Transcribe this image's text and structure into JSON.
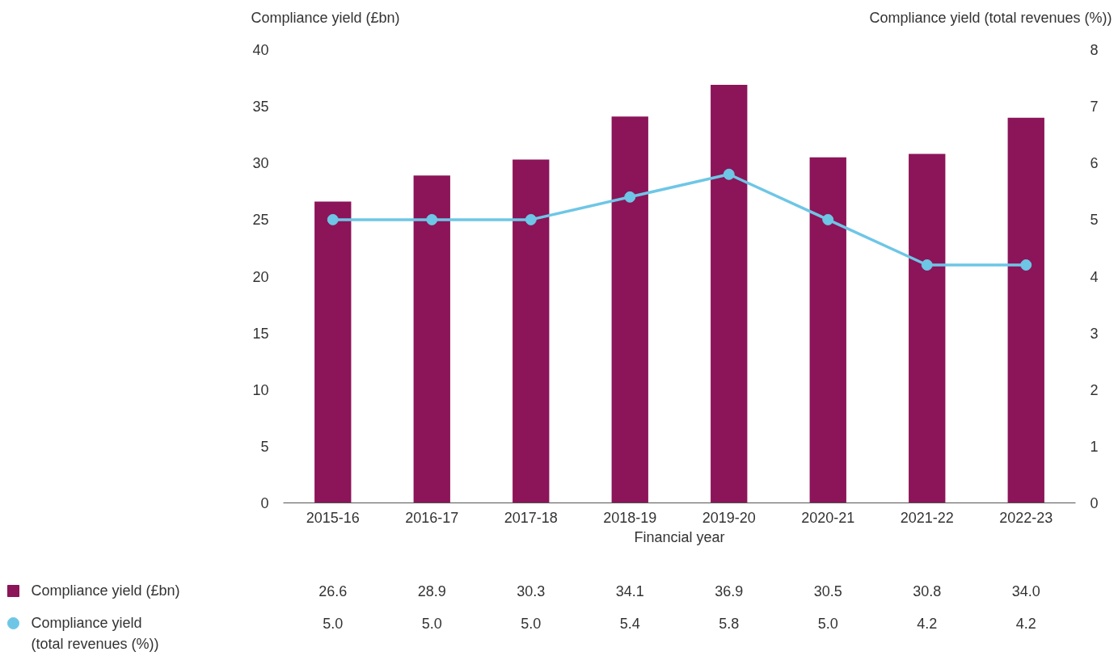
{
  "chart_data": {
    "type": "bar",
    "xlabel": "Financial year",
    "ylabel": "Compliance yield (£bn)",
    "y2label": "Compliance yield (total revenues (%))",
    "categories": [
      "2015-16",
      "2016-17",
      "2017-18",
      "2018-19",
      "2019-20",
      "2020-21",
      "2021-22",
      "2022-23"
    ],
    "series": [
      {
        "name": "Compliance yield (£bn)",
        "color": "#8c1459",
        "values": [
          26.6,
          28.9,
          30.3,
          34.1,
          36.9,
          30.5,
          30.8,
          34.0
        ],
        "value_labels": [
          "26.6",
          "28.9",
          "30.3",
          "34.1",
          "36.9",
          "30.5",
          "30.8",
          "34.0"
        ]
      },
      {
        "name": "Compliance yield (total revenues (%))",
        "type": "line",
        "axis": "y2",
        "color": "#6ec6e6",
        "marker": "circle",
        "values": [
          5.0,
          5.0,
          5.0,
          5.4,
          5.8,
          5.0,
          4.2,
          4.2
        ],
        "value_labels": [
          "5.0",
          "5.0",
          "5.0",
          "5.4",
          "5.8",
          "5.0",
          "4.2",
          "4.2"
        ]
      }
    ],
    "ylim": [
      0,
      40
    ],
    "yticks": [
      0,
      5,
      10,
      15,
      20,
      25,
      30,
      35,
      40
    ],
    "y2lim": [
      0,
      8
    ],
    "y2ticks": [
      0,
      1,
      2,
      3,
      4,
      5,
      6,
      7,
      8
    ],
    "legend": "bottom left"
  }
}
